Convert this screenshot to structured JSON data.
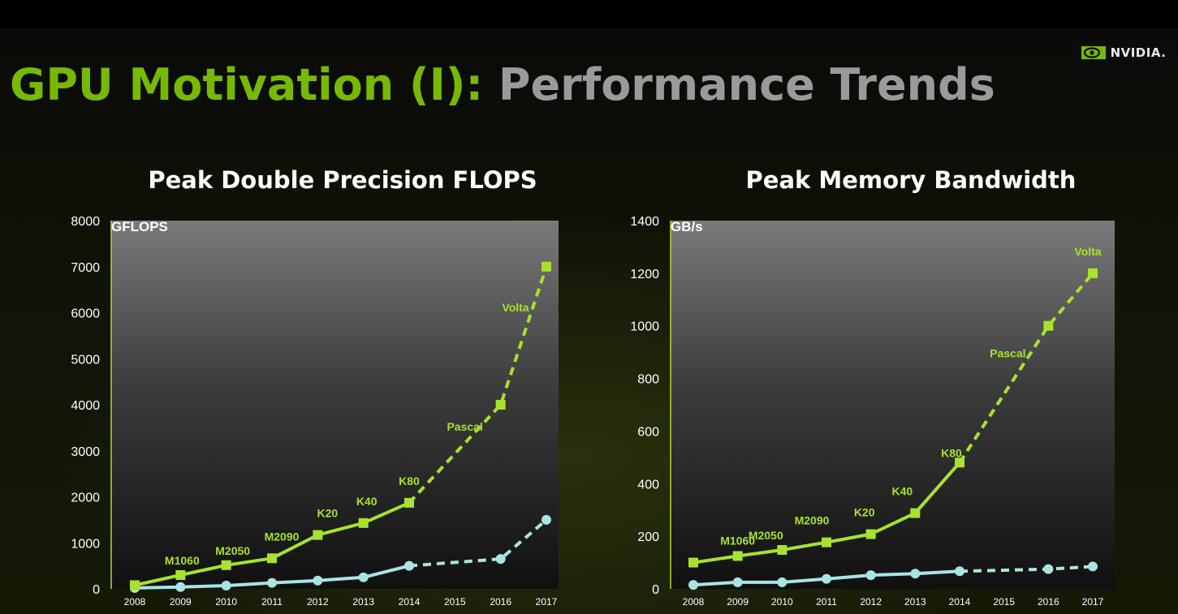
{
  "slide": {
    "title_main": "GPU Motivation (I):",
    "title_sub": "Performance Trends",
    "logo_text": "NVIDIA.",
    "colors": {
      "title_green": "#76b900",
      "title_gray": "#9a9a9a",
      "series_green": "#a6e22e",
      "series_cyan": "#a9e4e4"
    }
  },
  "chart_data": [
    {
      "type": "line",
      "title": "Peak Double Precision FLOPS",
      "ylabel": "GFLOPS",
      "x": [
        2008,
        2009,
        2010,
        2011,
        2012,
        2013,
        2014,
        2015,
        2016,
        2017
      ],
      "ylim": [
        0,
        8000
      ],
      "yticks": [
        0,
        1000,
        2000,
        3000,
        4000,
        5000,
        6000,
        7000,
        8000
      ],
      "grid": false,
      "series": [
        {
          "marker": "square",
          "color": "#a6e22e",
          "points": [
            [
              2008,
              80
            ],
            [
              2009,
              300
            ],
            [
              2010,
              515
            ],
            [
              2011,
              665
            ],
            [
              2012,
              1170
            ],
            [
              2013,
              1430
            ],
            [
              2014,
              1870
            ],
            [
              2016,
              4000
            ],
            [
              2017,
              7000
            ]
          ],
          "dashed_from_x": 2014,
          "point_labels": [
            "",
            "M1060",
            "M2050",
            "M2090",
            "K20",
            "K40",
            "K80",
            "Pascal",
            "Volta"
          ]
        },
        {
          "marker": "circle",
          "color": "#a9e4e4",
          "points": [
            [
              2008,
              20
            ],
            [
              2009,
              40
            ],
            [
              2010,
              70
            ],
            [
              2011,
              130
            ],
            [
              2012,
              180
            ],
            [
              2013,
              250
            ],
            [
              2014,
              500
            ],
            [
              2016,
              650
            ],
            [
              2017,
              1500
            ]
          ],
          "dashed_from_x": 2014
        }
      ]
    },
    {
      "type": "line",
      "title": "Peak Memory Bandwidth",
      "ylabel": "GB/s",
      "x": [
        2008,
        2009,
        2010,
        2011,
        2012,
        2013,
        2014,
        2015,
        2016,
        2017
      ],
      "ylim": [
        0,
        1400
      ],
      "yticks": [
        0,
        200,
        400,
        600,
        800,
        1000,
        1200,
        1400
      ],
      "grid": false,
      "series": [
        {
          "marker": "square",
          "color": "#a6e22e",
          "points": [
            [
              2008,
              100
            ],
            [
              2009,
              125
            ],
            [
              2010,
              148
            ],
            [
              2011,
              177
            ],
            [
              2012,
              208
            ],
            [
              2013,
              288
            ],
            [
              2014,
              480
            ],
            [
              2016,
              1000
            ],
            [
              2017,
              1200
            ]
          ],
          "dashed_from_x": 2014,
          "point_labels": [
            "",
            "M1060",
            "M2050",
            "M2090",
            "K20",
            "K40",
            "K80",
            "Pascal",
            "Volta"
          ]
        },
        {
          "marker": "circle",
          "color": "#a9e4e4",
          "points": [
            [
              2008,
              15
            ],
            [
              2009,
              25
            ],
            [
              2010,
              25
            ],
            [
              2011,
              38
            ],
            [
              2012,
              52
            ],
            [
              2013,
              58
            ],
            [
              2014,
              67
            ],
            [
              2016,
              75
            ],
            [
              2017,
              85
            ]
          ],
          "dashed_from_x": 2014
        }
      ]
    }
  ]
}
